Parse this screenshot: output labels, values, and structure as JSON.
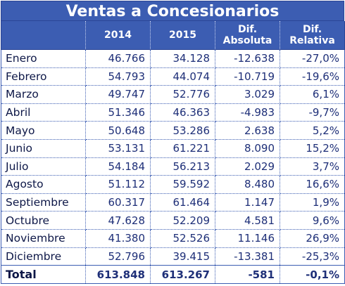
{
  "title": "Ventas a Concesionarios",
  "headers": {
    "month": "",
    "y2014": "2014",
    "y2015": "2015",
    "dif_abs_line1": "Dif.",
    "dif_abs_line2": "Absoluta",
    "dif_rel_line1": "Dif.",
    "dif_rel_line2": "Relativa"
  },
  "rows": [
    {
      "month": "Enero",
      "y2014": "46.766",
      "y2015": "34.128",
      "dif_abs": "-12.638",
      "dif_rel": "-27,0%"
    },
    {
      "month": "Febrero",
      "y2014": "54.793",
      "y2015": "44.074",
      "dif_abs": "-10.719",
      "dif_rel": "-19,6%"
    },
    {
      "month": "Marzo",
      "y2014": "49.747",
      "y2015": "52.776",
      "dif_abs": "3.029",
      "dif_rel": "6,1%"
    },
    {
      "month": "Abril",
      "y2014": "51.346",
      "y2015": "46.363",
      "dif_abs": "-4.983",
      "dif_rel": "-9,7%"
    },
    {
      "month": "Mayo",
      "y2014": "50.648",
      "y2015": "53.286",
      "dif_abs": "2.638",
      "dif_rel": "5,2%"
    },
    {
      "month": "Junio",
      "y2014": "53.131",
      "y2015": "61.221",
      "dif_abs": "8.090",
      "dif_rel": "15,2%"
    },
    {
      "month": "Julio",
      "y2014": "54.184",
      "y2015": "56.213",
      "dif_abs": "2.029",
      "dif_rel": "3,7%"
    },
    {
      "month": "Agosto",
      "y2014": "51.112",
      "y2015": "59.592",
      "dif_abs": "8.480",
      "dif_rel": "16,6%"
    },
    {
      "month": "Septiembre",
      "y2014": "60.317",
      "y2015": "61.464",
      "dif_abs": "1.147",
      "dif_rel": "1,9%"
    },
    {
      "month": "Octubre",
      "y2014": "47.628",
      "y2015": "52.209",
      "dif_abs": "4.581",
      "dif_rel": "9,6%"
    },
    {
      "month": "Noviembre",
      "y2014": "41.380",
      "y2015": "52.526",
      "dif_abs": "11.146",
      "dif_rel": "26,9%"
    },
    {
      "month": "Diciembre",
      "y2014": "52.796",
      "y2015": "39.415",
      "dif_abs": "-13.381",
      "dif_rel": "-25,3%"
    }
  ],
  "total": {
    "month": "Total",
    "y2014": "613.848",
    "y2015": "613.267",
    "dif_abs": "-581",
    "dif_rel": "-0,1%"
  },
  "colors": {
    "header_bg": "#3c5db2",
    "header_text": "#ffffff",
    "cell_text": "#1e2f78",
    "grid": "#3c5db2"
  }
}
